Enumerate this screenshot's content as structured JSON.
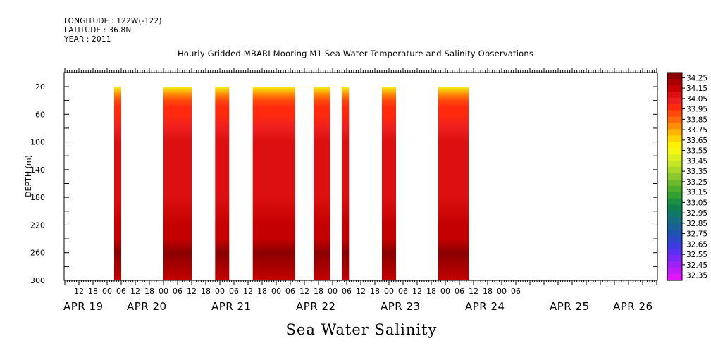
{
  "meta": {
    "longitude": "LONGITUDE : 122W(-122)",
    "latitude": "LATITUDE : 36.8N",
    "year": "YEAR : 2011"
  },
  "chart_data": {
    "type": "heatmap",
    "title": "Hourly Gridded MBARI Mooring M1 Sea Water Temperature and Salinity Observations",
    "variable_title": "Sea Water Salinity",
    "ylabel": "DEPTH (m)",
    "xlabel": "",
    "y_axis": {
      "range": [
        300,
        20
      ],
      "ticks": [
        20,
        60,
        100,
        140,
        180,
        220,
        260,
        300
      ],
      "direction": "depth increasing downward"
    },
    "x_axis": {
      "range_hours": [
        "APR 19 06",
        "APR 26 18"
      ],
      "hour_ticks": [
        "12",
        "18",
        "00",
        "06",
        "12",
        "18",
        "00",
        "06",
        "12",
        "18",
        "00",
        "06",
        "12",
        "18",
        "00",
        "06",
        "12",
        "18",
        "00",
        "06",
        "12",
        "18",
        "00",
        "06",
        "12",
        "18",
        "00",
        "06",
        "12",
        "18",
        "00",
        "06"
      ],
      "date_labels": [
        "APR 19",
        "APR 20",
        "APR 21",
        "APR 22",
        "APR 23",
        "APR 24",
        "APR 25",
        "APR 26"
      ]
    },
    "data_segments": [
      {
        "start": "APR 20 03",
        "end": "APR 20 06"
      },
      {
        "start": "APR 21 00",
        "end": "APR 21 12"
      },
      {
        "start": "APR 21 22",
        "end": "APR 22 04"
      },
      {
        "start": "APR 22 14",
        "end": "APR 23 08"
      },
      {
        "start": "APR 23 16",
        "end": "APR 23 23"
      },
      {
        "start": "APR 24 04",
        "end": "APR 24 07"
      },
      {
        "start": "APR 24 21",
        "end": "APR 25 03"
      },
      {
        "start": "APR 25 21",
        "end": "APR 26 10"
      }
    ],
    "salinity_profile": {
      "depths": [
        20,
        30,
        40,
        50,
        60,
        80,
        100,
        120,
        140,
        180,
        220,
        240,
        250,
        260,
        280,
        300
      ],
      "values": [
        33.55,
        33.8,
        33.9,
        33.95,
        34.0,
        34.05,
        34.07,
        34.1,
        34.12,
        34.12,
        34.15,
        34.18,
        34.22,
        34.25,
        34.2,
        34.18
      ]
    },
    "colorbar": {
      "labels": [
        "34.25",
        "34.15",
        "34.05",
        "33.95",
        "33.85",
        "33.75",
        "33.65",
        "33.55",
        "33.45",
        "33.35",
        "33.25",
        "33.15",
        "33.05",
        "32.95",
        "32.85",
        "32.75",
        "32.65",
        "32.55",
        "32.45",
        "32.35"
      ],
      "colors": [
        "#8b0000",
        "#a80000",
        "#c40000",
        "#dc1010",
        "#ee1e1e",
        "#ff2a0e",
        "#ff4a0a",
        "#ff6a08",
        "#ff9006",
        "#ffb404",
        "#ffd602",
        "#fff200",
        "#f2f814",
        "#dcf01e",
        "#c4e628",
        "#a8d828",
        "#8cc82c",
        "#6cba2c",
        "#4cae2a",
        "#30a030",
        "#1a9040",
        "#108050",
        "#107868",
        "#146c80",
        "#186098",
        "#1e54b0",
        "#2848c8",
        "#3a3cde",
        "#5a30ee",
        "#7a28f4",
        "#9c22f6",
        "#c01cf8",
        "#e018fa"
      ]
    }
  }
}
